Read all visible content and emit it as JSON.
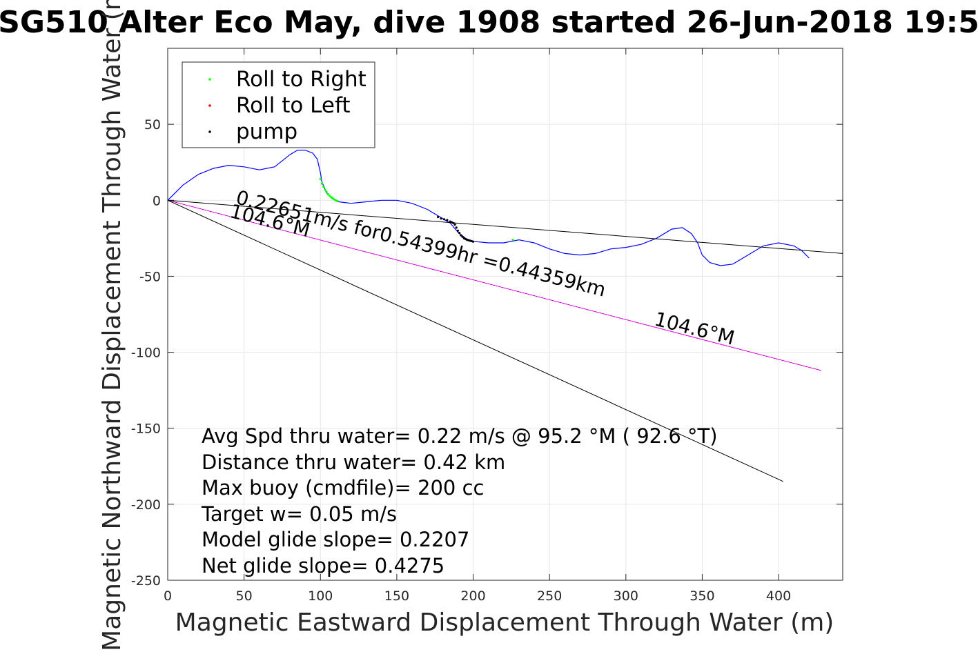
{
  "chart_data": {
    "type": "line",
    "title": "SG510 Alter Eco May, dive 1908 started 26-Jun-2018 19:5",
    "xlabel": "Magnetic Eastward Displacement Through Water (m)",
    "ylabel": "Magnetic Northward Displacement Through Water (m)",
    "xlim": [
      0,
      442
    ],
    "ylim": [
      -250,
      100
    ],
    "xticks": [
      "0",
      "50",
      "100",
      "150",
      "200",
      "250",
      "300",
      "350",
      "400"
    ],
    "xtick_values": [
      0,
      50,
      100,
      150,
      200,
      250,
      300,
      350,
      400
    ],
    "yticks": [
      "50",
      "0",
      "-50",
      "-100",
      "-150",
      "-200",
      "-250"
    ],
    "ytick_values": [
      50,
      0,
      -50,
      -100,
      -150,
      -200,
      -250
    ],
    "grid": true,
    "legend": {
      "placement": "top-left",
      "entries": [
        {
          "label": "Roll to Right",
          "color": "#00ff00"
        },
        {
          "label": "Roll to Left",
          "color": "#ff0000"
        },
        {
          "label": "pump",
          "color": "#000000"
        }
      ]
    },
    "series": [
      {
        "kind": "track",
        "color": "#0000ff",
        "x": [
          0,
          10,
          20,
          30,
          40,
          50,
          60,
          70,
          80,
          85,
          90,
          95,
          98,
          100,
          101,
          104,
          108,
          112,
          120,
          130,
          140,
          150,
          160,
          170,
          180,
          185,
          190,
          195,
          200,
          210,
          220,
          230,
          240,
          250,
          260,
          270,
          280,
          290,
          300,
          310,
          320,
          330,
          337,
          343,
          347,
          350,
          355,
          362,
          370,
          380,
          390,
          400,
          410,
          415,
          420
        ],
        "y": [
          0,
          10,
          17,
          21,
          23,
          22,
          20,
          22,
          30,
          33,
          33,
          31,
          27,
          18,
          12,
          5,
          1,
          -1,
          -2,
          -1,
          0,
          0,
          -2,
          -6,
          -12,
          -15,
          -21,
          -25,
          -27,
          -28,
          -28,
          -26,
          -28,
          -32,
          -35,
          -36,
          -35,
          -32,
          -31,
          -29,
          -25,
          -19,
          -18,
          -22,
          -28,
          -36,
          -41,
          -43,
          -42,
          -36,
          -30,
          -28,
          -30,
          -33,
          -38
        ]
      },
      {
        "kind": "roll-to-right",
        "color": "#00ff00",
        "x": [
          100,
          101,
          102,
          103,
          104,
          105,
          106,
          107,
          108,
          109,
          110,
          111,
          226
        ],
        "y": [
          14,
          11,
          9,
          7,
          5.5,
          4,
          3,
          2,
          1.3,
          0.6,
          0,
          -0.5,
          -26
        ]
      },
      {
        "kind": "pump",
        "color": "#000000",
        "x": [
          177,
          179,
          181,
          183,
          185,
          186,
          187,
          188,
          189,
          190,
          191,
          192,
          193,
          194,
          195,
          196,
          197,
          198,
          199,
          200
        ],
        "y": [
          -11,
          -12,
          -12.5,
          -13,
          -14,
          -14.5,
          -15,
          -16,
          -18,
          -20,
          -21.5,
          -23,
          -24,
          -25,
          -25.5,
          -26,
          -26.3,
          -26.6,
          -26.9,
          -27.2
        ]
      },
      {
        "kind": "average-heading-line",
        "color": "#ff00ff",
        "x": [
          0,
          428
        ],
        "y": [
          0,
          -112
        ]
      },
      {
        "kind": "reference-line",
        "color": "#000000",
        "x": [
          0,
          442
        ],
        "y": [
          0,
          -35
        ]
      },
      {
        "kind": "reference-line",
        "color": "#000000",
        "x": [
          0,
          403
        ],
        "y": [
          0,
          -185
        ]
      }
    ],
    "annotations": [
      {
        "text": "0.22651m/s for0.54399hr =0.44359km",
        "x": 44,
        "y": -2,
        "angle": 14.2
      },
      {
        "text": "104.6°M",
        "x": 40,
        "y": -11,
        "angle": 14.2
      },
      {
        "text": "104.6°M",
        "x": 318,
        "y": -82,
        "angle": 14.2
      }
    ],
    "info_lines": [
      "Avg Spd thru water=  0.22 m/s @  95.2 °M ( 92.6 °T)",
      "Distance thru water=  0.42 km",
      "Max buoy (cmdfile)= 200 cc",
      "Target w= 0.05 m/s",
      "Model glide slope= 0.2207",
      "Net glide slope= 0.4275"
    ]
  }
}
